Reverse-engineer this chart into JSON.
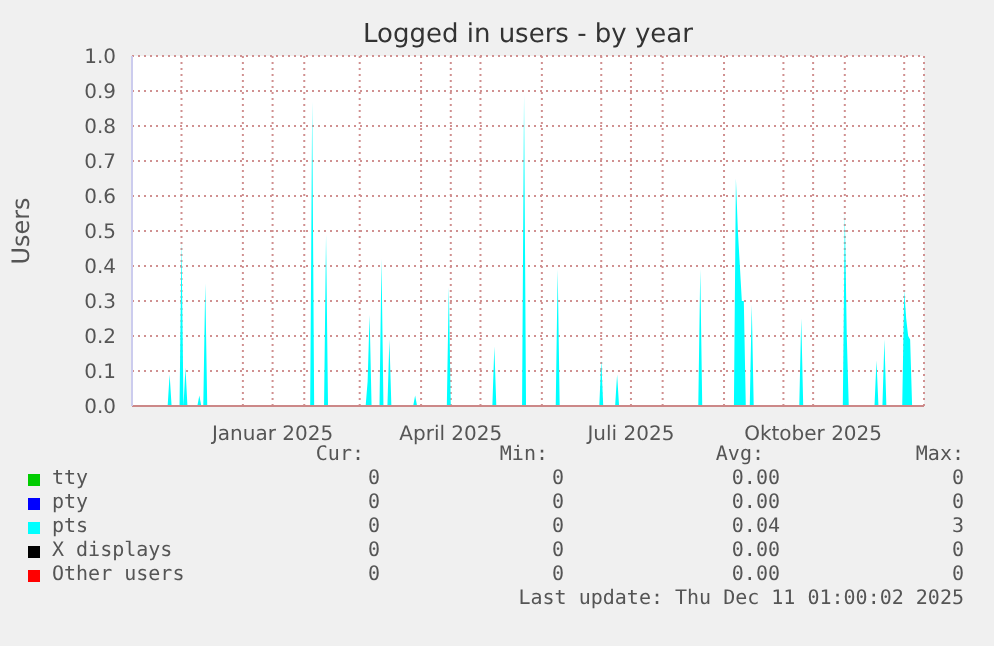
{
  "chart_data": {
    "type": "area",
    "title": "Logged in users - by year",
    "ylabel": "Users",
    "xlim": [
      "2024-11-06",
      "2025-12-11"
    ],
    "xticks": [
      {
        "value": "2024-12-01",
        "label": null
      },
      {
        "value": "2025-01-01",
        "label": null
      },
      {
        "value": "2025-01-16",
        "label": "Januar 2025"
      },
      {
        "value": "2025-02-01",
        "label": null
      },
      {
        "value": "2025-03-01",
        "label": null
      },
      {
        "value": "2025-04-01",
        "label": null
      },
      {
        "value": "2025-04-16",
        "label": "April 2025"
      },
      {
        "value": "2025-05-01",
        "label": null
      },
      {
        "value": "2025-06-01",
        "label": null
      },
      {
        "value": "2025-07-01",
        "label": null
      },
      {
        "value": "2025-07-16",
        "label": "Juli 2025"
      },
      {
        "value": "2025-08-01",
        "label": null
      },
      {
        "value": "2025-09-01",
        "label": null
      },
      {
        "value": "2025-10-01",
        "label": null
      },
      {
        "value": "2025-10-16",
        "label": "Oktober 2025"
      },
      {
        "value": "2025-11-01",
        "label": null
      },
      {
        "value": "2025-12-01",
        "label": null
      }
    ],
    "ylim": [
      0,
      1
    ],
    "yticks": [
      {
        "value": 0,
        "label": "0.0"
      },
      0.1,
      0.2,
      0.3,
      0.4,
      0.5,
      0.6,
      0.7,
      0.8,
      0.9,
      {
        "value": 1,
        "label": "1.0"
      }
    ],
    "grid": true,
    "legend": "bottom",
    "series": [
      {
        "name": "tty",
        "color": "#00cc00"
      },
      {
        "name": "pty",
        "color": "#0000ff"
      },
      {
        "name": "pts",
        "color": "#00ffff",
        "x": [
          "2024-11-06",
          "2024-11-24",
          "2024-11-25",
          "2024-11-26",
          "2024-11-30",
          "2024-12-01",
          "2024-12-02",
          "2024-12-03",
          "2024-12-04",
          "2024-12-09",
          "2024-12-10",
          "2024-12-11",
          "2024-12-12",
          "2024-12-13",
          "2024-12-14",
          "2025-02-04",
          "2025-02-05",
          "2025-02-06",
          "2025-02-11",
          "2025-02-12",
          "2025-02-13",
          "2025-03-04",
          "2025-03-05",
          "2025-03-06",
          "2025-03-07",
          "2025-03-11",
          "2025-03-12",
          "2025-03-13",
          "2025-03-15",
          "2025-03-16",
          "2025-03-17",
          "2025-03-28",
          "2025-03-29",
          "2025-03-30",
          "2025-04-14",
          "2025-04-15",
          "2025-04-16",
          "2025-05-07",
          "2025-05-08",
          "2025-05-09",
          "2025-05-22",
          "2025-05-23",
          "2025-05-24",
          "2025-06-08",
          "2025-06-09",
          "2025-06-10",
          "2025-06-30",
          "2025-07-01",
          "2025-07-02",
          "2025-07-08",
          "2025-07-09",
          "2025-07-10",
          "2025-08-19",
          "2025-08-20",
          "2025-08-21",
          "2025-09-06",
          "2025-09-07",
          "2025-09-08",
          "2025-09-09",
          "2025-09-10",
          "2025-09-11",
          "2025-09-12",
          "2025-09-14",
          "2025-09-15",
          "2025-09-16",
          "2025-10-09",
          "2025-10-10",
          "2025-10-11",
          "2025-10-31",
          "2025-11-01",
          "2025-11-02",
          "2025-11-03",
          "2025-11-16",
          "2025-11-17",
          "2025-11-18",
          "2025-11-20",
          "2025-11-21",
          "2025-11-22",
          "2025-11-30",
          "2025-12-01",
          "2025-12-02",
          "2025-12-03",
          "2025-12-04",
          "2025-12-05",
          "2025-12-11"
        ],
        "values": [
          0,
          0,
          0.09,
          0,
          0,
          0.47,
          0,
          0.11,
          0,
          0,
          0.03,
          0,
          0,
          0.35,
          0,
          0,
          0.87,
          0,
          0,
          0.49,
          0,
          0,
          0.07,
          0.26,
          0,
          0,
          0.42,
          0,
          0,
          0.19,
          0,
          0,
          0.03,
          0,
          0,
          0.34,
          0,
          0,
          0.17,
          0,
          0,
          0.89,
          0,
          0,
          0.39,
          0,
          0,
          0.13,
          0,
          0,
          0.09,
          0,
          0,
          0.39,
          0,
          0,
          0.65,
          0.5,
          0.4,
          0.3,
          0.3,
          0,
          0,
          0.29,
          0,
          0,
          0.25,
          0,
          0,
          0.55,
          0.2,
          0,
          0,
          0.13,
          0,
          0,
          0.19,
          0,
          0,
          0.33,
          0.25,
          0.2,
          0.19,
          0,
          0
        ]
      },
      {
        "name": "X displays",
        "color": "#000000"
      },
      {
        "name": "Other users",
        "color": "#ff0000"
      }
    ],
    "annotations": [
      "Cur:",
      "Min:",
      "Avg:",
      "Max:",
      "0",
      "0",
      "0.00",
      "0",
      "0",
      "0",
      "0.00",
      "0",
      "0",
      "0",
      "0.04",
      "3",
      "0",
      "0",
      "0.00",
      "0",
      "0",
      "0",
      "0.00",
      "0",
      "Last update: Thu Dec 11 01:00:02 2025"
    ]
  }
}
